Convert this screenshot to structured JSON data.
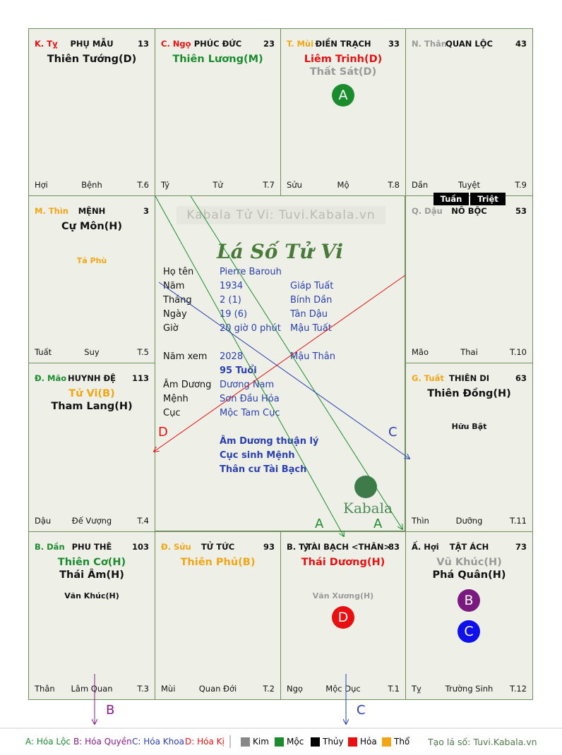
{
  "watermark_text": "Kabala Tử Vi: Tuvi.Kabala.vn",
  "title": "Lá Số Tử Vi",
  "colors": {
    "kim": "#888888",
    "moc": "#1a8c2e",
    "thuy": "#000000",
    "hoa": "#e81010",
    "tho": "#f2a515",
    "green": "#1a8c2e",
    "red": "#e81010",
    "gray": "#999999",
    "orange": "#f2a515",
    "blue": "#2a3fb0",
    "purple": "#8a1a8a"
  },
  "palaces": {
    "p1": {
      "can": "K. Tỵ",
      "name": "PHỤ MẪU",
      "age": "13",
      "stars": [
        {
          "t": "Thiên Tướng(D)",
          "c": "#111111"
        }
      ],
      "minor": [],
      "bl": "Hợi",
      "bc": "Bệnh",
      "br": "T.6"
    },
    "p2": {
      "can": "C. Ngọ",
      "name": "PHÚC ĐỨC",
      "age": "23",
      "stars": [
        {
          "t": "Thiên Lương(M)",
          "c": "#1a8c2e"
        }
      ],
      "minor": [],
      "bl": "Tý",
      "bc": "Tử",
      "br": "T.7"
    },
    "p3": {
      "can": "T. Mùi",
      "name": "ĐIỀN TRẠCH",
      "age": "33",
      "stars": [
        {
          "t": "Liêm Trinh(D)",
          "c": "#e81010"
        },
        {
          "t": "Thất Sát(D)",
          "c": "#999999"
        }
      ],
      "minor": [],
      "bl": "Sửu",
      "bc": "Mộ",
      "br": "T.8"
    },
    "p4": {
      "can": "N. Thân",
      "name": "QUAN LỘC",
      "age": "43",
      "stars": [],
      "minor": [],
      "bl": "Dần",
      "bc": "Tuyệt",
      "br": "T.9"
    },
    "p5": {
      "can": "M. Thìn",
      "name": "MỆNH",
      "age": "3",
      "stars": [
        {
          "t": "Cự Môn(H)",
          "c": "#111111"
        }
      ],
      "minor": [
        {
          "t": "Tả Phù",
          "c": "#f2a515"
        }
      ],
      "bl": "Tuất",
      "bc": "Suy",
      "br": "T.5"
    },
    "p6": {
      "can": "Q. Dậu",
      "name": "NÔ BỘC",
      "age": "53",
      "stars": [],
      "minor": [],
      "bl": "Mão",
      "bc": "Thai",
      "br": "T.10"
    },
    "p7": {
      "can": "Đ. Mão",
      "name": "HUYNH ĐỆ",
      "age": "113",
      "stars": [
        {
          "t": "Tử Vi(B)",
          "c": "#f2a515"
        },
        {
          "t": "Tham Lang(H)",
          "c": "#111111"
        }
      ],
      "minor": [],
      "bl": "Dậu",
      "bc": "Đế Vượng",
      "br": "T.4"
    },
    "p8": {
      "can": "G. Tuất",
      "name": "THIÊN DI",
      "age": "63",
      "stars": [
        {
          "t": "Thiên Đồng(H)",
          "c": "#111111"
        }
      ],
      "minor": [
        {
          "t": "Hữu Bật",
          "c": "#111111"
        }
      ],
      "bl": "Thìn",
      "bc": "Dưỡng",
      "br": "T.11"
    },
    "p9": {
      "can": "B. Dần",
      "name": "PHU THÊ",
      "age": "103",
      "stars": [
        {
          "t": "Thiên Cơ(H)",
          "c": "#1a8c2e"
        },
        {
          "t": "Thái Âm(H)",
          "c": "#111111"
        }
      ],
      "minor": [
        {
          "t": "Văn Khúc(H)",
          "c": "#111111"
        }
      ],
      "bl": "Thân",
      "bc": "Lâm Quan",
      "br": "T.3"
    },
    "p10": {
      "can": "Đ. Sửu",
      "name": "TỬ TỨC",
      "age": "93",
      "stars": [
        {
          "t": "Thiên Phủ(B)",
          "c": "#f2a515"
        }
      ],
      "minor": [],
      "bl": "Mùi",
      "bc": "Quan Đới",
      "br": "T.2"
    },
    "p11": {
      "can": "B. Tý",
      "name": "TÀI BẠCH <THÂN>",
      "age": "83",
      "stars": [
        {
          "t": "Thái Dương(H)",
          "c": "#e81010"
        }
      ],
      "minor": [
        {
          "t": "Văn Xương(H)",
          "c": "#999999"
        }
      ],
      "bl": "Ngọ",
      "bc": "Mộc Dục",
      "br": "T.1"
    },
    "p12": {
      "can": "Ấ. Hợi",
      "name": "TẬT ÁCH",
      "age": "73",
      "stars": [
        {
          "t": "Vũ Khúc(H)",
          "c": "#999999"
        },
        {
          "t": "Phá Quân(H)",
          "c": "#111111"
        }
      ],
      "minor": [],
      "bl": "Tỵ",
      "bc": "Trường Sinh",
      "br": "T.12"
    }
  },
  "tuan": "Tuần",
  "triet": "Triệt",
  "badges": {
    "a": "A",
    "b": "B",
    "c": "C",
    "d": "D"
  },
  "info": {
    "ho_ten_label": "Họ tên",
    "ho_ten": "Pierre Barouh",
    "nam_label": "Năm",
    "nam": "1934",
    "nam_cc": "Giáp Tuất",
    "thang_label": "Tháng",
    "thang": "2  (1)",
    "thang_cc": "Bính Dần",
    "ngay_label": "Ngày",
    "ngay": "19  (6)",
    "ngay_cc": "Tân Dậu",
    "gio_label": "Giờ",
    "gio": "20 giờ 0 phút",
    "gio_cc": "Mậu Tuất",
    "nam_xem_label": "Năm xem",
    "nam_xem": "2028",
    "nam_xem_cc": "Mậu Thân",
    "tuoi": "95 Tuổi",
    "am_duong_label": "Âm Dương",
    "am_duong": "Dương Nam",
    "menh_label": "Mệnh",
    "menh": "Sơn Đầu Hỏa",
    "cuc_label": "Cục",
    "cuc": "Mộc Tam Cục",
    "note1": "Âm Dương thuận lý",
    "note2": "Cục sinh Mệnh",
    "note3": "Thân cư Tài Bạch"
  },
  "kabala_logo": "Kabala",
  "arrow_labels": {
    "a1": "A",
    "a2": "A",
    "c": "C",
    "d": "D",
    "b": "B",
    "c2": "C"
  },
  "legend": {
    "a": "A: Hóa Lộc",
    "b": "B: Hóa Quyền",
    "c": "C: Hóa Khoa",
    "d": "D: Hóa Kị",
    "kim": "Kim",
    "moc": "Mộc",
    "thuy": "Thủy",
    "hoa": "Hỏa",
    "tho": "Thổ",
    "site": "Tạo lá số: Tuvi.Kabala.vn"
  }
}
